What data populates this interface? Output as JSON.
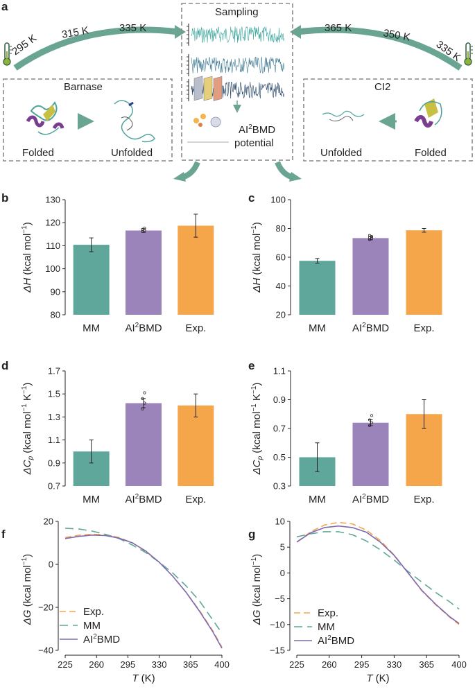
{
  "colors": {
    "mm": "#5fa79a",
    "ai2bmd": "#9b84b9",
    "exp": "#f5a54a",
    "arrow": "#6aa593",
    "purple_line": "#7d69b0"
  },
  "panel_a": {
    "label": "a",
    "sampling_title": "Sampling",
    "left_temps": [
      "295 K",
      "315 K",
      "335 K"
    ],
    "right_temps": [
      "365 K",
      "350 K",
      "335 K"
    ],
    "barnase": {
      "title": "Barnase",
      "folded": "Folded",
      "unfolded": "Unfolded"
    },
    "ci2": {
      "title": "CI2",
      "folded": "Folded",
      "unfolded": "Unfolded"
    },
    "potential": {
      "prefix": "AI",
      "sup": "2",
      "suffix": "BMD",
      "line2": "potential"
    },
    "icons": [
      "thermometer-icon",
      "thermometer-icon",
      "protein-structure-icon",
      "neural-network-icon"
    ]
  },
  "chart_data": [
    {
      "id": "b",
      "type": "bar",
      "label": "b",
      "categories": [
        "MM",
        "AI2BMD",
        "Exp."
      ],
      "values": [
        110.4,
        116.6,
        118.7
      ],
      "errors": [
        3,
        0.8,
        5
      ],
      "ylim": [
        80,
        130
      ],
      "yticks": [
        80,
        90,
        100,
        110,
        120,
        130
      ],
      "points": [
        [],
        [
          116.2,
          116.6,
          117.1,
          117.6
        ],
        []
      ],
      "ylabel": {
        "pre": "ΔH",
        "mid": " (kcal mol",
        "sup": "−1",
        "post": ")"
      }
    },
    {
      "id": "c",
      "type": "bar",
      "label": "c",
      "categories": [
        "MM",
        "AI2BMD",
        "Exp."
      ],
      "values": [
        57.5,
        73.3,
        78.7
      ],
      "errors": [
        1.6,
        1.2,
        1.3
      ],
      "ylim": [
        20,
        100
      ],
      "yticks": [
        20,
        40,
        60,
        80,
        100
      ],
      "points": [
        [],
        [
          72.3,
          73.2,
          73.8,
          74.4,
          75.1
        ],
        []
      ],
      "ylabel": {
        "pre": "ΔH",
        "mid": " (kcal mol",
        "sup": "−1",
        "post": ")"
      }
    },
    {
      "id": "d",
      "type": "bar",
      "label": "d",
      "categories": [
        "MM",
        "AI2BMD",
        "Exp."
      ],
      "values": [
        1.0,
        1.42,
        1.4
      ],
      "errors": [
        0.1,
        0.04,
        0.1
      ],
      "ylim": [
        0.7,
        1.7
      ],
      "yticks": [
        0.7,
        0.9,
        1.1,
        1.3,
        1.5,
        1.7
      ],
      "points": [
        [],
        [
          1.37,
          1.42,
          1.46,
          1.51
        ],
        []
      ],
      "ylabel": {
        "pre": "ΔC",
        "sub": "p",
        "mid": " (kcal mol",
        "sup": "−1",
        "post": " K",
        "sup2": "−1",
        "end": ")"
      }
    },
    {
      "id": "e",
      "type": "bar",
      "label": "e",
      "categories": [
        "MM",
        "AI2BMD",
        "Exp."
      ],
      "values": [
        0.5,
        0.74,
        0.8
      ],
      "errors": [
        0.1,
        0.02,
        0.1
      ],
      "ylim": [
        0.3,
        1.1
      ],
      "yticks": [
        0.3,
        0.5,
        0.7,
        0.9,
        1.1
      ],
      "points": [
        [],
        [
          0.72,
          0.74,
          0.76,
          0.79
        ],
        []
      ],
      "ylabel": {
        "pre": "ΔC",
        "sub": "p",
        "mid": " (kcal mol",
        "sup": "−1",
        "post": " K",
        "sup2": "−1",
        "end": ")"
      }
    },
    {
      "id": "f",
      "type": "line",
      "label": "f",
      "xlim": [
        225,
        400
      ],
      "ylim": [
        -40,
        20
      ],
      "xticks": [
        225,
        260,
        295,
        330,
        365,
        400
      ],
      "yticks": [
        -40,
        -20,
        0,
        20
      ],
      "xlabel": {
        "pre": "T",
        "post": " (K)"
      },
      "ylabel": {
        "pre": "ΔG",
        "mid": " (kcal mol",
        "sup": "−1",
        "post": ")"
      },
      "legend": [
        "Exp.",
        "MM",
        "AI2BMD"
      ],
      "series": [
        {
          "name": "Exp.",
          "style": "exp-dash",
          "x": [
            225,
            240,
            255,
            270,
            285,
            300,
            315,
            330,
            345,
            360,
            375,
            390,
            400
          ],
          "y": [
            12.5,
            13.5,
            14,
            13.8,
            12.5,
            10,
            6,
            1,
            -5.5,
            -13,
            -21.5,
            -31,
            -38.5
          ]
        },
        {
          "name": "MM",
          "style": "mm-dash",
          "x": [
            225,
            240,
            255,
            270,
            285,
            300,
            315,
            330,
            345,
            360,
            375,
            390,
            400
          ],
          "y": [
            16.8,
            16.5,
            15.5,
            14,
            12,
            9,
            5.5,
            1,
            -4,
            -10,
            -17,
            -26,
            -32
          ]
        },
        {
          "name": "AI2BMD",
          "style": "ai-solid",
          "x": [
            225,
            240,
            255,
            270,
            285,
            300,
            315,
            330,
            345,
            360,
            375,
            390,
            400
          ],
          "y": [
            12,
            13,
            13.6,
            13.4,
            12.2,
            10,
            6.2,
            1,
            -5.5,
            -13,
            -21.8,
            -31.5,
            -39
          ]
        }
      ]
    },
    {
      "id": "g",
      "type": "line",
      "label": "g",
      "xlim": [
        225,
        400
      ],
      "ylim": [
        -15,
        10
      ],
      "xticks": [
        225,
        260,
        295,
        330,
        365,
        400
      ],
      "yticks": [
        -15,
        -10,
        -5,
        0,
        5,
        10
      ],
      "xlabel": {
        "pre": "T",
        "post": " (K)"
      },
      "ylabel": {
        "pre": "ΔG",
        "mid": " (kcal mol",
        "sup": "−1",
        "post": ")"
      },
      "legend": [
        "Exp.",
        "MM",
        "AI2BMD"
      ],
      "series": [
        {
          "name": "Exp.",
          "style": "exp-dash",
          "x": [
            225,
            240,
            255,
            270,
            285,
            300,
            315,
            330,
            345,
            360,
            375,
            390,
            400
          ],
          "y": [
            6,
            8,
            9.3,
            9.8,
            9.5,
            8.3,
            6.3,
            3.5,
            0,
            -3.5,
            -6.2,
            -8.6,
            -10
          ]
        },
        {
          "name": "MM",
          "style": "mm-dash",
          "x": [
            225,
            240,
            255,
            270,
            285,
            300,
            315,
            330,
            345,
            360,
            375,
            390,
            400
          ],
          "y": [
            7,
            7.6,
            8,
            8,
            7.4,
            6.2,
            4.5,
            2.5,
            0.3,
            -1.8,
            -3.8,
            -5.6,
            -7
          ]
        },
        {
          "name": "AI2BMD",
          "style": "ai-solid",
          "x": [
            225,
            240,
            255,
            270,
            285,
            300,
            315,
            330,
            345,
            360,
            375,
            390,
            400
          ],
          "y": [
            6,
            7.8,
            8.8,
            9.1,
            8.8,
            7.9,
            6,
            3.4,
            0,
            -3.4,
            -6.1,
            -8.5,
            -9.8
          ]
        }
      ]
    }
  ]
}
